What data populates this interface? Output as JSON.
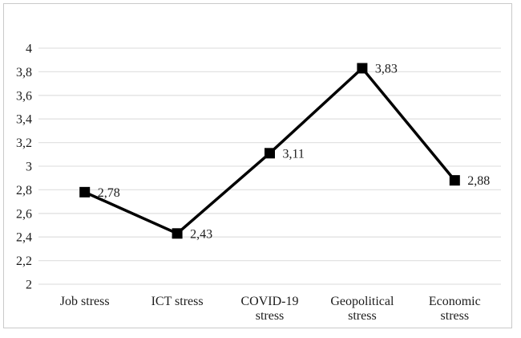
{
  "page": {
    "background_color": "#ffffff",
    "frame_border_color": "#c9c9c9"
  },
  "chart_data": {
    "type": "line",
    "title": "",
    "xlabel": "",
    "ylabel": "",
    "categories": [
      "Job stress",
      "ICT stress",
      "COVID-19 stress",
      "Geopolitical stress",
      "Economic stress"
    ],
    "category_label_lines": [
      [
        "Job stress"
      ],
      [
        "ICT stress"
      ],
      [
        "COVID-19",
        "stress"
      ],
      [
        "Geopolitical",
        "stress"
      ],
      [
        "Economic",
        "stress"
      ]
    ],
    "values": [
      2.78,
      2.43,
      3.11,
      3.83,
      2.88
    ],
    "data_labels": [
      "2,78",
      "2,43",
      "3,11",
      "3,83",
      "2,88"
    ],
    "ylim": [
      2,
      4
    ],
    "y_tick_step": 0.2,
    "y_tick_labels": [
      "4",
      "3,8",
      "3,6",
      "3,4",
      "3,2",
      "3",
      "2,8",
      "2,6",
      "2,4",
      "2,2",
      "2"
    ],
    "decimal_separator": ",",
    "grid": true,
    "legend_position": "none",
    "series_color": "#000000",
    "marker_shape": "square",
    "marker_color": "#000000",
    "gridline_color": "#e2e2e2",
    "axis_line_color": "#e2e2e2",
    "text_color": "#1c1c1c"
  }
}
